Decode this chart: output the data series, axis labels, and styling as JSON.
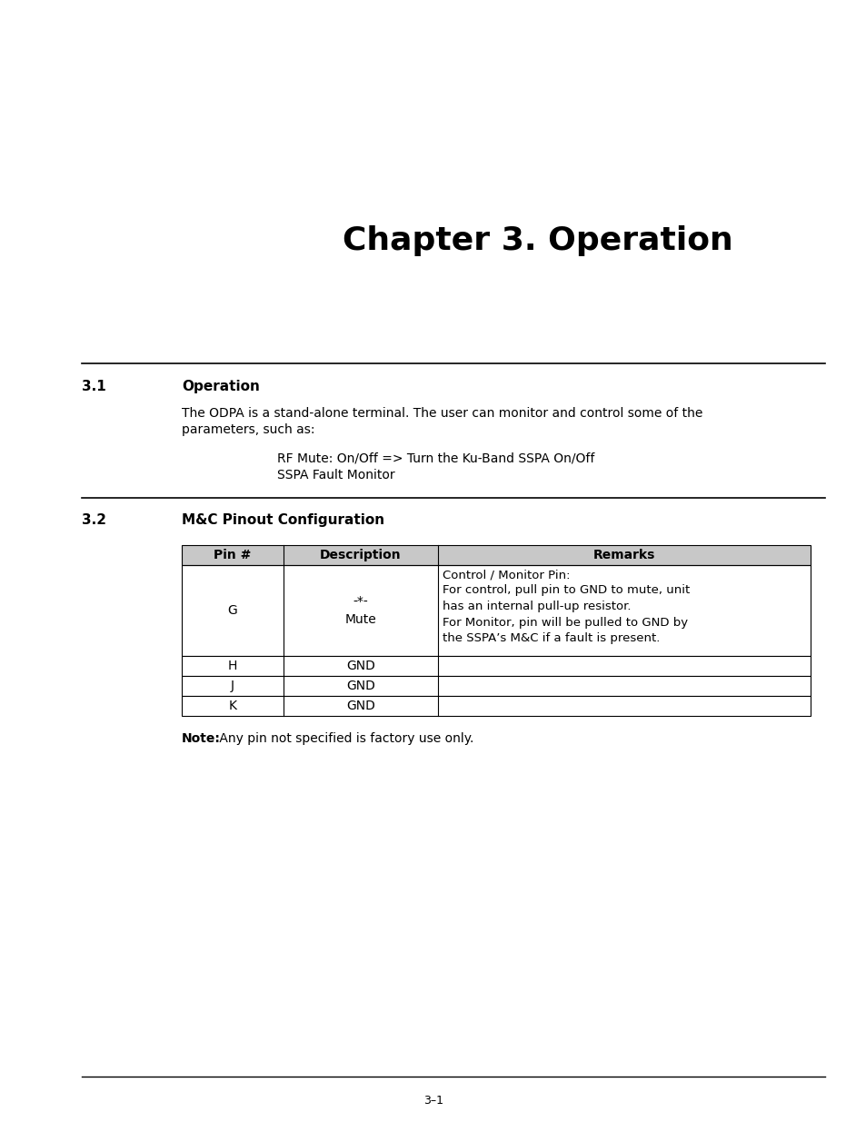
{
  "title": "Chapter 3. Operation",
  "title_fontsize": 26,
  "title_fontweight": "bold",
  "section1_number": "3.1",
  "section1_heading": "Operation",
  "section1_body_line1": "The ODPA is a stand-alone terminal. The user can monitor and control some of the",
  "section1_body_line2": "parameters, such as:",
  "section1_bullet1": "RF Mute: On/Off => Turn the Ku-Band SSPA On/Off",
  "section1_bullet2": "SSPA Fault Monitor",
  "section2_number": "3.2",
  "section2_heading": "M&C Pinout Configuration",
  "table_header": [
    "Pin #",
    "Description",
    "Remarks"
  ],
  "table_header_bg": "#c8c8c8",
  "table_rows": [
    [
      "G",
      "-*-\nMute",
      "Control / Monitor Pin:\nFor control, pull pin to GND to mute, unit\nhas an internal pull-up resistor.\nFor Monitor, pin will be pulled to GND by\nthe SSPA’s M&C if a fault is present."
    ],
    [
      "H",
      "GND",
      ""
    ],
    [
      "J",
      "GND",
      ""
    ],
    [
      "K",
      "GND",
      ""
    ]
  ],
  "note_bold": "Note:",
  "note_text": " Any pin not specified is factory use only.",
  "footer_text": "3–1",
  "bg_color": "#ffffff",
  "text_color": "#000000"
}
